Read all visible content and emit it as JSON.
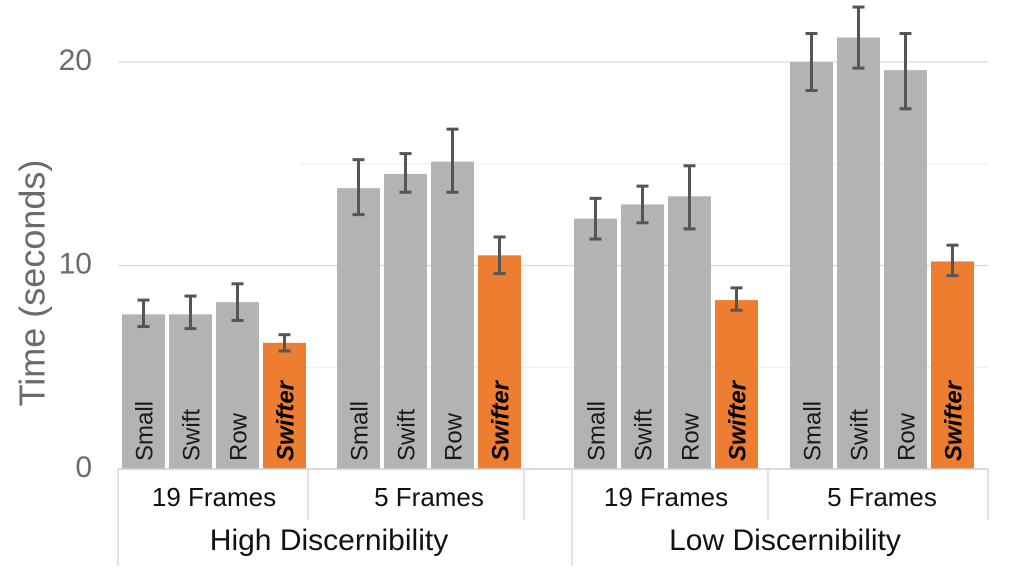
{
  "chart_data": {
    "type": "bar",
    "ylabel": "Time (seconds)",
    "ylim": [
      0,
      22
    ],
    "yticks": [
      0,
      10,
      20
    ],
    "minor_gridlines": [
      5,
      15
    ],
    "grid": true,
    "colors": {
      "default": "#b3b3b3",
      "highlight": "#ed7d31",
      "error_bar": "#555555",
      "grid": "#d9d9d9"
    },
    "super_groups": [
      {
        "label": "High Discernibility",
        "groups": [
          {
            "label": "19 Frames",
            "bars": [
              {
                "label": "Small",
                "value": 7.6,
                "err_low": 7.0,
                "err_high": 8.3,
                "highlight": false
              },
              {
                "label": "Swift",
                "value": 7.6,
                "err_low": 6.9,
                "err_high": 8.5,
                "highlight": false
              },
              {
                "label": "Row",
                "value": 8.2,
                "err_low": 7.3,
                "err_high": 9.1,
                "highlight": false
              },
              {
                "label": "Swifter",
                "value": 6.2,
                "err_low": 5.8,
                "err_high": 6.6,
                "highlight": true
              }
            ]
          },
          {
            "label": "5 Frames",
            "bars": [
              {
                "label": "Small",
                "value": 13.8,
                "err_low": 12.5,
                "err_high": 15.2,
                "highlight": false
              },
              {
                "label": "Swift",
                "value": 14.5,
                "err_low": 13.6,
                "err_high": 15.5,
                "highlight": false
              },
              {
                "label": "Row",
                "value": 15.1,
                "err_low": 13.6,
                "err_high": 16.7,
                "highlight": false
              },
              {
                "label": "Swifter",
                "value": 10.5,
                "err_low": 9.6,
                "err_high": 11.4,
                "highlight": true
              }
            ]
          }
        ]
      },
      {
        "label": "Low Discernibility",
        "groups": [
          {
            "label": "19 Frames",
            "bars": [
              {
                "label": "Small",
                "value": 12.3,
                "err_low": 11.3,
                "err_high": 13.3,
                "highlight": false
              },
              {
                "label": "Swift",
                "value": 13.0,
                "err_low": 12.1,
                "err_high": 13.9,
                "highlight": false
              },
              {
                "label": "Row",
                "value": 13.4,
                "err_low": 11.8,
                "err_high": 14.9,
                "highlight": false
              },
              {
                "label": "Swifter",
                "value": 8.3,
                "err_low": 7.8,
                "err_high": 8.9,
                "highlight": true
              }
            ]
          },
          {
            "label": "5 Frames",
            "bars": [
              {
                "label": "Small",
                "value": 20.0,
                "err_low": 18.6,
                "err_high": 21.4,
                "highlight": false
              },
              {
                "label": "Swift",
                "value": 21.2,
                "err_low": 19.7,
                "err_high": 22.7,
                "highlight": false
              },
              {
                "label": "Row",
                "value": 19.6,
                "err_low": 17.7,
                "err_high": 21.4,
                "highlight": false
              },
              {
                "label": "Swifter",
                "value": 10.2,
                "err_low": 9.5,
                "err_high": 11.0,
                "highlight": true
              }
            ]
          }
        ]
      }
    ]
  }
}
